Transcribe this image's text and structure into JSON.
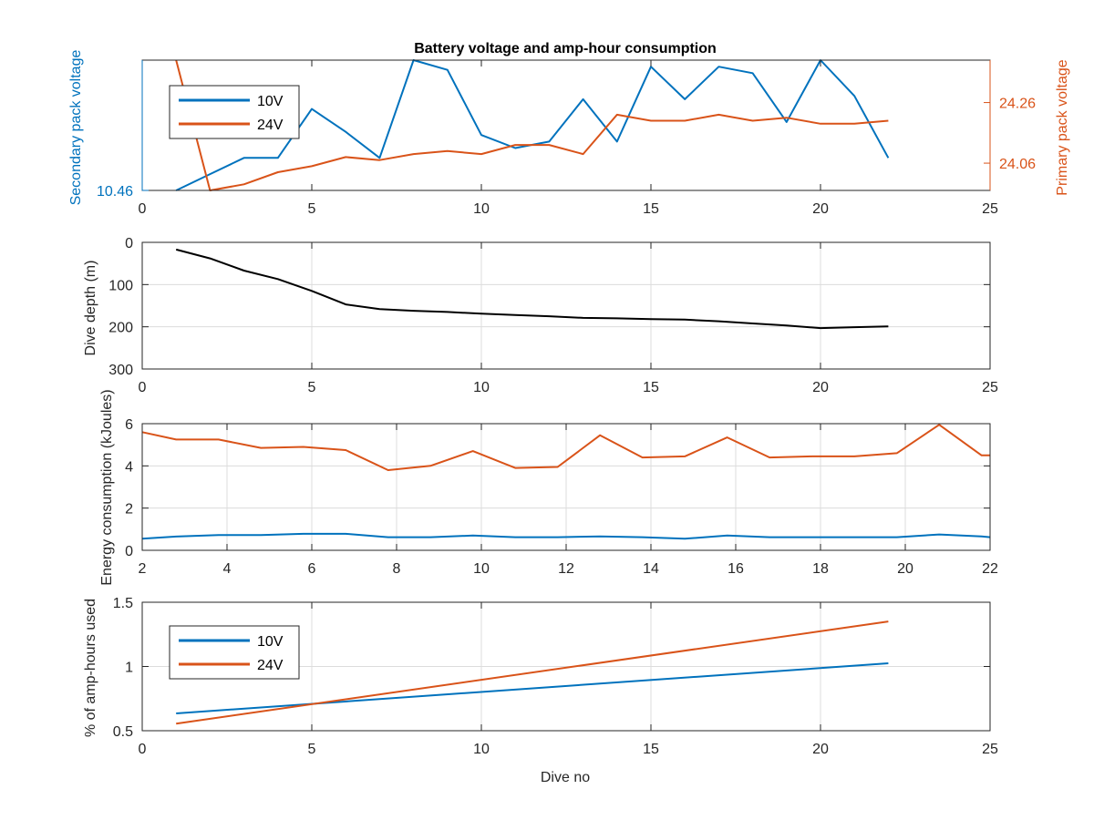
{
  "colors": {
    "blue": "#0072BD",
    "orange": "#D95319",
    "black": "#000000",
    "blue_axis": "#0072BD",
    "orange_axis": "#D95319"
  },
  "chart_data": [
    {
      "type": "line",
      "title": "Battery voltage and amp-hour consumption",
      "xlabel": "",
      "ylabel_left": "Secondary pack voltage",
      "ylabel_right": "Primary pack voltage",
      "xlim": [
        0,
        25
      ],
      "xticks": [
        "0",
        "5",
        "10",
        "15",
        "20",
        "25"
      ],
      "left_ylim": [
        10.46,
        10.5
      ],
      "left_yticks": [
        "10.46"
      ],
      "right_ylim": [
        23.97,
        24.4
      ],
      "right_yticks": [
        "24.06",
        "24.26"
      ],
      "grid": false,
      "legend": {
        "placement": "top-left",
        "entries": [
          "10V",
          "24V"
        ]
      },
      "series": [
        {
          "name": "10V",
          "axis": "left",
          "x": [
            1,
            2,
            3,
            4,
            5,
            6,
            7,
            8,
            9,
            10,
            11,
            12,
            13,
            14,
            15,
            16,
            17,
            18,
            19,
            20,
            21,
            22
          ],
          "values": [
            10.46,
            10.465,
            10.47,
            10.47,
            10.485,
            10.478,
            10.47,
            10.5,
            10.497,
            10.477,
            10.473,
            10.475,
            10.488,
            10.475,
            10.498,
            10.488,
            10.498,
            10.496,
            10.481,
            10.5,
            10.489,
            10.47
          ]
        },
        {
          "name": "24V",
          "axis": "right",
          "x": [
            1,
            2,
            3,
            4,
            5,
            6,
            7,
            8,
            9,
            10,
            11,
            12,
            13,
            14,
            15,
            16,
            17,
            18,
            19,
            20,
            21,
            22
          ],
          "values": [
            24.4,
            23.97,
            23.99,
            24.03,
            24.05,
            24.08,
            24.07,
            24.09,
            24.1,
            24.09,
            24.12,
            24.12,
            24.09,
            24.22,
            24.2,
            24.2,
            24.22,
            24.2,
            24.21,
            24.19,
            24.19,
            24.2
          ]
        }
      ]
    },
    {
      "type": "line",
      "title": "",
      "xlabel": "",
      "ylabel": "Dive depth (m)",
      "xlim": [
        0,
        25
      ],
      "ylim": [
        0,
        300
      ],
      "y_reversed": true,
      "xticks": [
        "0",
        "5",
        "10",
        "15",
        "20",
        "25"
      ],
      "yticks": [
        "0",
        "100",
        "200",
        "300"
      ],
      "grid": true,
      "series": [
        {
          "name": "",
          "x": [
            1,
            2,
            3,
            4,
            5,
            6,
            7,
            8,
            9,
            10,
            11,
            12,
            13,
            14,
            15,
            16,
            17,
            18,
            19,
            20,
            21,
            22
          ],
          "values": [
            17,
            38,
            67,
            87,
            115,
            147,
            158,
            162,
            165,
            169,
            172,
            175,
            179,
            180,
            182,
            183,
            187,
            192,
            197,
            203,
            201,
            199
          ]
        }
      ]
    },
    {
      "type": "line",
      "title": "",
      "xlabel": "",
      "ylabel": "Energy consumption (kJoules)",
      "xlim": [
        2,
        22
      ],
      "ylim": [
        0,
        6
      ],
      "xticks": [
        "2",
        "4",
        "6",
        "8",
        "10",
        "12",
        "14",
        "16",
        "18",
        "20",
        "22"
      ],
      "yticks": [
        "0",
        "2",
        "4",
        "6"
      ],
      "grid": true,
      "series": [
        {
          "name": "10V",
          "x": [
            2,
            2.8,
            3.8,
            4.8,
            5.8,
            6.8,
            7.8,
            8.8,
            9.8,
            10.8,
            11.8,
            12.8,
            13.8,
            14.8,
            15.8,
            16.8,
            17.8,
            18.8,
            19.8,
            20.8,
            21.8,
            22
          ],
          "values": [
            0.55,
            0.65,
            0.72,
            0.72,
            0.78,
            0.78,
            0.62,
            0.62,
            0.7,
            0.62,
            0.62,
            0.66,
            0.62,
            0.55,
            0.7,
            0.62,
            0.62,
            0.62,
            0.62,
            0.75,
            0.66,
            0.62
          ]
        },
        {
          "name": "24V",
          "x": [
            2,
            2.8,
            3.8,
            4.8,
            5.8,
            6.8,
            7.8,
            8.8,
            9.8,
            10.8,
            11.8,
            12.8,
            13.8,
            14.8,
            15.8,
            16.8,
            17.8,
            18.8,
            19.8,
            20.8,
            21.8,
            22
          ],
          "values": [
            5.6,
            5.25,
            5.25,
            4.85,
            4.9,
            4.75,
            3.8,
            4.0,
            4.7,
            3.9,
            3.95,
            5.45,
            4.4,
            4.45,
            5.35,
            4.4,
            4.45,
            4.45,
            4.6,
            5.95,
            4.5,
            4.5
          ]
        }
      ]
    },
    {
      "type": "line",
      "title": "",
      "xlabel": "Dive no",
      "ylabel": "% of amp-hours used",
      "xlim": [
        0,
        25
      ],
      "ylim": [
        0.5,
        1.5
      ],
      "xticks": [
        "0",
        "5",
        "10",
        "15",
        "20",
        "25"
      ],
      "yticks": [
        "0.5",
        "1",
        "1.5"
      ],
      "grid": true,
      "legend": {
        "placement": "top-left",
        "entries": [
          "10V",
          "24V"
        ]
      },
      "series": [
        {
          "name": "10V",
          "x": [
            1,
            22
          ],
          "values": [
            0.635,
            1.025
          ]
        },
        {
          "name": "24V",
          "x": [
            1,
            22
          ],
          "values": [
            0.555,
            1.35
          ]
        }
      ]
    }
  ]
}
